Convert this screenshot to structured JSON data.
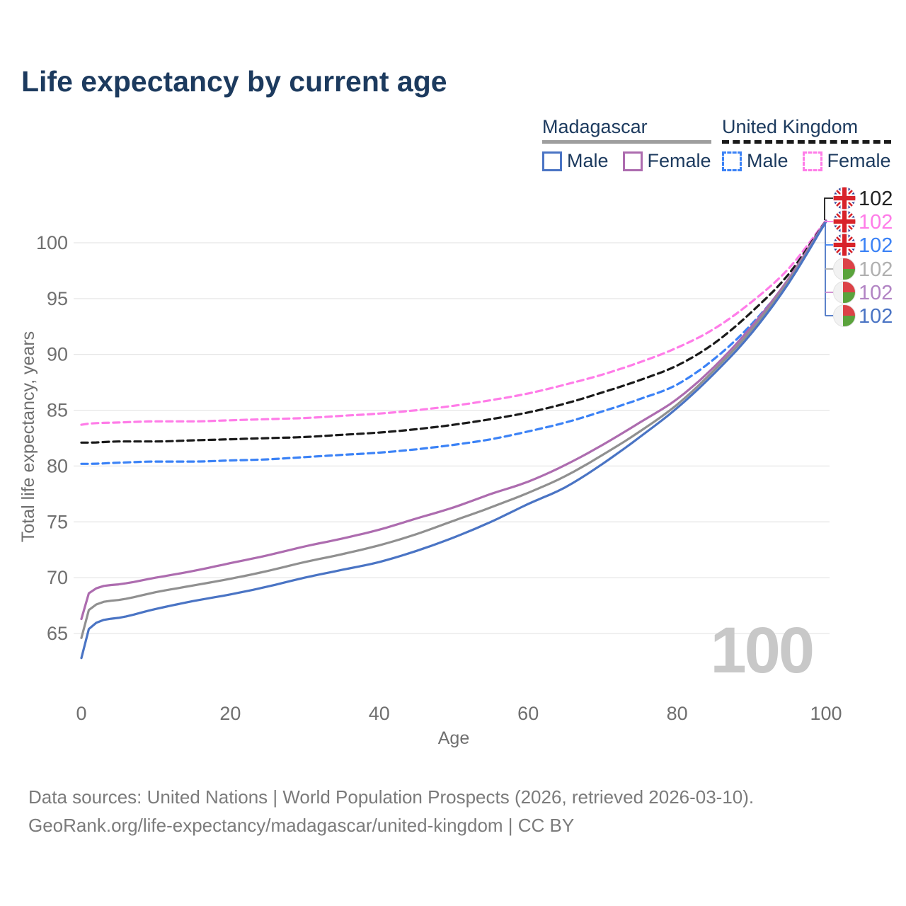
{
  "title": "Life expectancy by current age",
  "legend": {
    "groups": [
      {
        "id": "madagascar",
        "label": "Madagascar",
        "line_style": "solid",
        "line_color": "#9e9e9e",
        "items": [
          {
            "label": "Male",
            "color": "#4a74c4",
            "dash": false
          },
          {
            "label": "Female",
            "color": "#ad6caf",
            "dash": false
          }
        ]
      },
      {
        "id": "united-kingdom",
        "label": "United Kingdom",
        "line_style": "dashed",
        "line_color": "#1a1a1a",
        "items": [
          {
            "label": "Male",
            "color": "#3b82f6",
            "dash": true
          },
          {
            "label": "Female",
            "color": "#ff7ce8",
            "dash": true
          }
        ]
      }
    ]
  },
  "watermark_age": "100",
  "chart_data": {
    "type": "line",
    "title": "Life expectancy by current age",
    "xlabel": "Age",
    "ylabel": "Total life expectancy, years",
    "xlim": [
      0,
      100
    ],
    "ylim": [
      62,
      102.5
    ],
    "x_ticks": [
      0,
      20,
      40,
      60,
      80,
      100
    ],
    "y_ticks": [
      65,
      70,
      75,
      80,
      85,
      90,
      95,
      100
    ],
    "grid": "horizontal-only",
    "legend_position": "top-right",
    "x": [
      0,
      1,
      5,
      10,
      15,
      20,
      25,
      30,
      35,
      40,
      45,
      50,
      55,
      60,
      65,
      70,
      75,
      80,
      85,
      90,
      95,
      100
    ],
    "series": [
      {
        "name": "United Kingdom Female",
        "country": "United Kingdom",
        "sex": "Female",
        "color": "#ff7ce8",
        "dash": "dashed",
        "values": [
          83.7,
          83.8,
          83.9,
          84.0,
          84.0,
          84.1,
          84.2,
          84.3,
          84.5,
          84.7,
          85.0,
          85.4,
          85.9,
          86.5,
          87.3,
          88.2,
          89.3,
          90.6,
          92.3,
          94.7,
          97.7,
          102.0
        ]
      },
      {
        "name": "United Kingdom Both sexes",
        "country": "United Kingdom",
        "sex": "Both",
        "color": "#1a1a1a",
        "dash": "dashed",
        "values": [
          82.1,
          82.1,
          82.2,
          82.2,
          82.3,
          82.4,
          82.5,
          82.6,
          82.8,
          83.0,
          83.3,
          83.7,
          84.2,
          84.8,
          85.6,
          86.6,
          87.7,
          89.0,
          91.0,
          93.8,
          97.2,
          102.0
        ]
      },
      {
        "name": "United Kingdom Male",
        "country": "United Kingdom",
        "sex": "Male",
        "color": "#3b82f6",
        "dash": "dashed",
        "values": [
          80.2,
          80.2,
          80.3,
          80.4,
          80.4,
          80.5,
          80.6,
          80.8,
          81.0,
          81.2,
          81.5,
          81.9,
          82.4,
          83.1,
          83.9,
          84.9,
          86.0,
          87.3,
          89.6,
          92.7,
          96.7,
          101.9
        ]
      },
      {
        "name": "Madagascar Female",
        "country": "Madagascar",
        "sex": "Female",
        "color": "#ad6caf",
        "dash": "solid",
        "values": [
          66.3,
          68.6,
          69.4,
          70.0,
          70.6,
          71.3,
          72.0,
          72.8,
          73.5,
          74.3,
          75.3,
          76.3,
          77.5,
          78.6,
          80.1,
          81.9,
          83.9,
          86.0,
          88.9,
          92.5,
          96.8,
          102.0
        ]
      },
      {
        "name": "Madagascar Both sexes",
        "country": "Madagascar",
        "sex": "Both",
        "color": "#909090",
        "dash": "solid",
        "values": [
          64.6,
          67.1,
          68.0,
          68.7,
          69.3,
          69.9,
          70.6,
          71.4,
          72.1,
          72.9,
          73.9,
          75.1,
          76.3,
          77.6,
          79.1,
          81.0,
          83.1,
          85.5,
          88.6,
          92.2,
          96.6,
          101.9
        ]
      },
      {
        "name": "Madagascar Male",
        "country": "Madagascar",
        "sex": "Male",
        "color": "#4a74c4",
        "dash": "solid",
        "values": [
          62.8,
          65.4,
          66.4,
          67.2,
          67.9,
          68.5,
          69.2,
          70.0,
          70.7,
          71.4,
          72.4,
          73.6,
          75.0,
          76.6,
          78.1,
          80.2,
          82.6,
          85.2,
          88.3,
          91.9,
          96.4,
          101.9
        ]
      }
    ],
    "end_labels": [
      {
        "flag": "uk",
        "series": "United Kingdom Both sexes",
        "value": "102",
        "color": "#222222"
      },
      {
        "flag": "uk",
        "series": "United Kingdom Female",
        "value": "102",
        "color": "#ff7ce8"
      },
      {
        "flag": "uk",
        "series": "United Kingdom Male",
        "value": "102",
        "color": "#3b82f6"
      },
      {
        "flag": "mg",
        "series": "Madagascar Both sexes",
        "value": "102",
        "color": "#b0b0b0"
      },
      {
        "flag": "mg",
        "series": "Madagascar Female",
        "value": "102",
        "color": "#b284c4"
      },
      {
        "flag": "mg",
        "series": "Madagascar Male",
        "value": "102",
        "color": "#4a74c4"
      }
    ]
  },
  "colors": {
    "title_text": "#1c3a5e",
    "axis_text": "#6f6f6f",
    "gridline": "#e7e7e7",
    "watermark": "#c8c8c8",
    "footer_text": "#7b7b7b",
    "uk_flag_navy": "#2d3f94",
    "uk_flag_red": "#d8232a",
    "mg_flag_red": "#dc4247",
    "mg_flag_green": "#5aa33c",
    "mg_flag_white": "#f2f2f2"
  },
  "footer": {
    "line1": "Data sources: United Nations | World Population Prospects (2026, retrieved 2026-03-10).",
    "line2": "GeoRank.org/life-expectancy/madagascar/united-kingdom | CC BY"
  }
}
